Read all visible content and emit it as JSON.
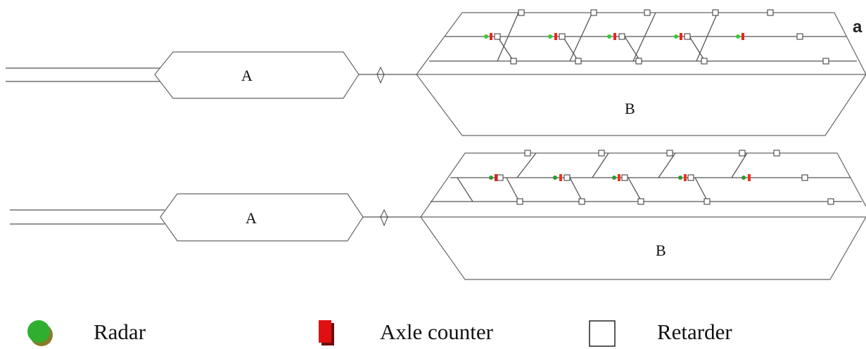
{
  "diagram": {
    "panel_label": "a",
    "yard_top": {
      "zone_a": "A",
      "zone_b": "B"
    },
    "yard_bottom": {
      "zone_a": "A",
      "zone_b": "B"
    }
  },
  "legend": {
    "radar": {
      "label": "Radar",
      "color": "#2fae2f",
      "icon": "green-circle"
    },
    "axle_counter": {
      "label": "Axle counter",
      "color": "#e01010",
      "icon": "red-rectangle"
    },
    "retarder": {
      "label": "Retarder",
      "color": "#ffffff",
      "icon": "white-square"
    }
  },
  "colors": {
    "track": "#555555",
    "radar": "#33cc33",
    "axle_counter": "#ee2222"
  }
}
